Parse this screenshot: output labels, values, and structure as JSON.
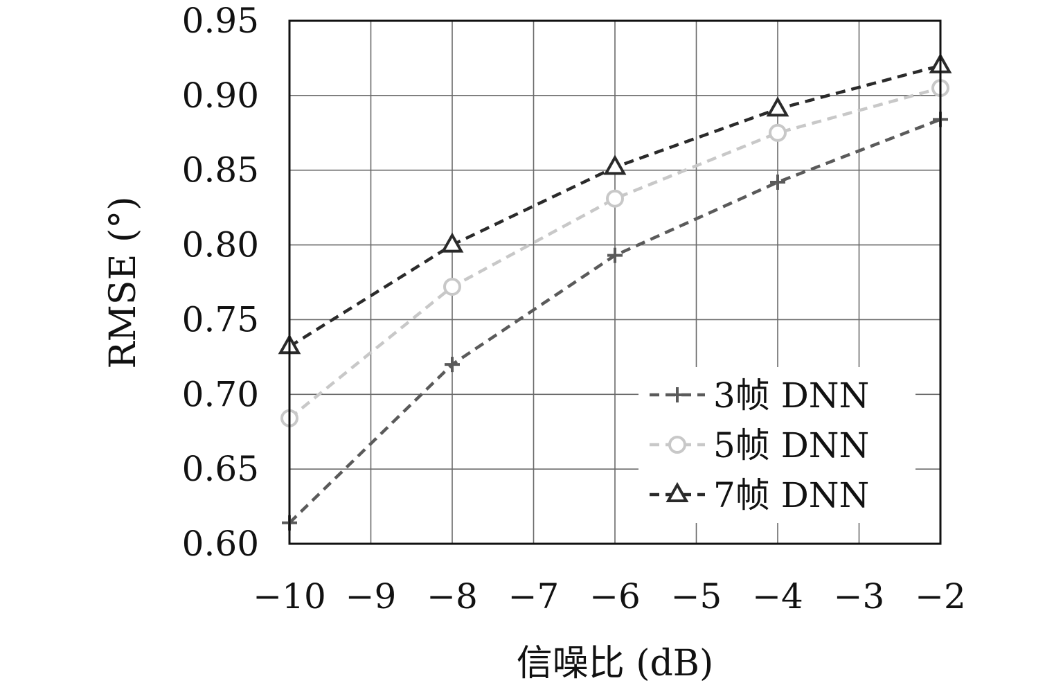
{
  "chart_data": {
    "type": "line",
    "xlabel": "信噪比 (dB)",
    "ylabel": "RMSE (°)",
    "xlim": [
      -10,
      -2
    ],
    "ylim": [
      0.6,
      0.95
    ],
    "x_ticks": [
      -10,
      -9,
      -8,
      -7,
      -6,
      -5,
      -4,
      -3,
      -2
    ],
    "x_tick_labels": [
      "−10",
      "−9",
      "−8",
      "−7",
      "−6",
      "−5",
      "−4",
      "−3",
      "−2"
    ],
    "y_ticks": [
      0.6,
      0.65,
      0.7,
      0.75,
      0.8,
      0.85,
      0.9,
      0.95
    ],
    "y_tick_labels": [
      "0.60",
      "0.65",
      "0.70",
      "0.75",
      "0.80",
      "0.85",
      "0.90",
      "0.95"
    ],
    "grid": true,
    "legend_position": "bottom-right",
    "x": [
      -10,
      -8,
      -6,
      -4,
      -2
    ],
    "series": [
      {
        "name": "3帧 DNN",
        "values": [
          0.614,
          0.72,
          0.793,
          0.842,
          0.884
        ],
        "color": "#5a5a5a",
        "marker": "plus"
      },
      {
        "name": "5帧 DNN",
        "values": [
          0.684,
          0.772,
          0.831,
          0.875,
          0.905
        ],
        "color": "#c8c8c8",
        "marker": "circle"
      },
      {
        "name": "7帧 DNN",
        "values": [
          0.732,
          0.8,
          0.852,
          0.891,
          0.92
        ],
        "color": "#2a2a2a",
        "marker": "triangle"
      }
    ]
  }
}
